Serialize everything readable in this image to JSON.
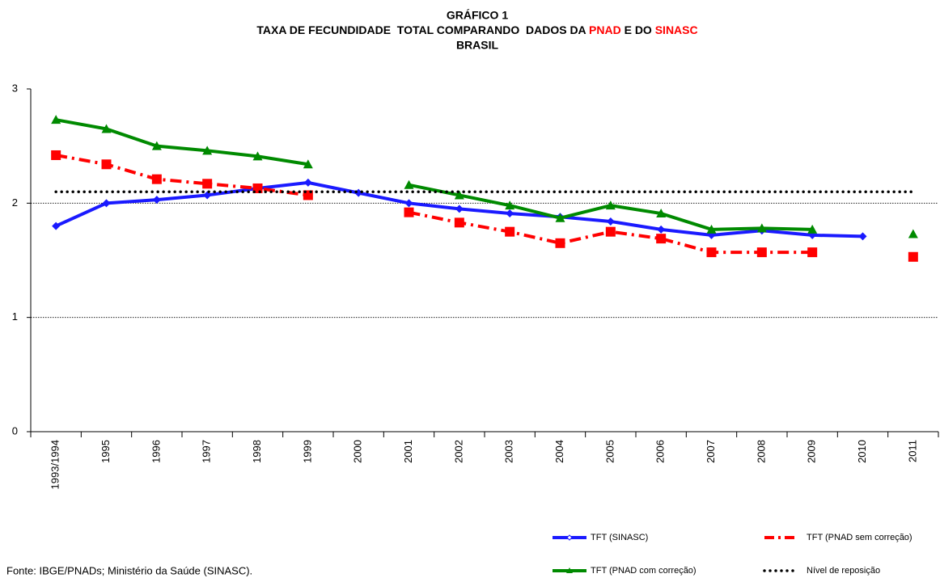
{
  "chart_data": {
    "type": "line",
    "title": "GRÁFICO 1",
    "subtitle": [
      "TAXA DE FECUNDIDADE  TOTAL COMPARANDO  DADOS DA ",
      "PNAD",
      " E DO ",
      "SINASC"
    ],
    "subtitle_colors": [
      "#000000",
      "#ff0000",
      "#000000",
      "#ff0000"
    ],
    "region": "BRASIL",
    "source": "Fonte: IBGE/PNADs; Ministério da Saúde (SINASC).",
    "categories": [
      "1993/1994",
      "1995",
      "1996",
      "1997",
      "1998",
      "1999",
      "2000",
      "2001",
      "2002",
      "2003",
      "2004",
      "2005",
      "2006",
      "2007",
      "2008",
      "2009",
      "2010",
      "2011"
    ],
    "series": [
      {
        "name": "TFT (SINASC)",
        "color": "#1a1aff",
        "marker": "diamond",
        "dash": "solid",
        "values": [
          1.8,
          2.0,
          2.03,
          2.07,
          2.13,
          2.18,
          2.09,
          2.0,
          1.95,
          1.91,
          1.88,
          1.84,
          1.77,
          1.72,
          1.76,
          1.72,
          1.71,
          null
        ]
      },
      {
        "name": "TFT (PNAD sem correção)",
        "color": "#ff0000",
        "marker": "square",
        "dash": "dashdot",
        "values": [
          2.42,
          2.34,
          2.21,
          2.17,
          2.13,
          2.07,
          null,
          1.92,
          1.83,
          1.75,
          1.65,
          1.75,
          1.69,
          1.57,
          1.57,
          1.57,
          null,
          1.53
        ]
      },
      {
        "name": "TFT (PNAD com correção)",
        "color": "#008a00",
        "marker": "triangle",
        "dash": "solid",
        "values": [
          2.73,
          2.65,
          2.5,
          2.46,
          2.41,
          2.34,
          null,
          2.16,
          2.07,
          1.98,
          1.87,
          1.98,
          1.91,
          1.77,
          1.78,
          1.77,
          null,
          1.73
        ]
      },
      {
        "name": "Nível de reposição",
        "color": "#000000",
        "marker": "none",
        "dash": "dotted",
        "values": [
          2.1,
          2.1,
          2.1,
          2.1,
          2.1,
          2.1,
          2.1,
          2.1,
          2.1,
          2.1,
          2.1,
          2.1,
          2.1,
          2.1,
          2.1,
          2.1,
          2.1,
          2.1
        ]
      }
    ],
    "ylim": [
      0,
      3
    ],
    "yticks": [
      0,
      1,
      2,
      3
    ],
    "grid": true
  }
}
